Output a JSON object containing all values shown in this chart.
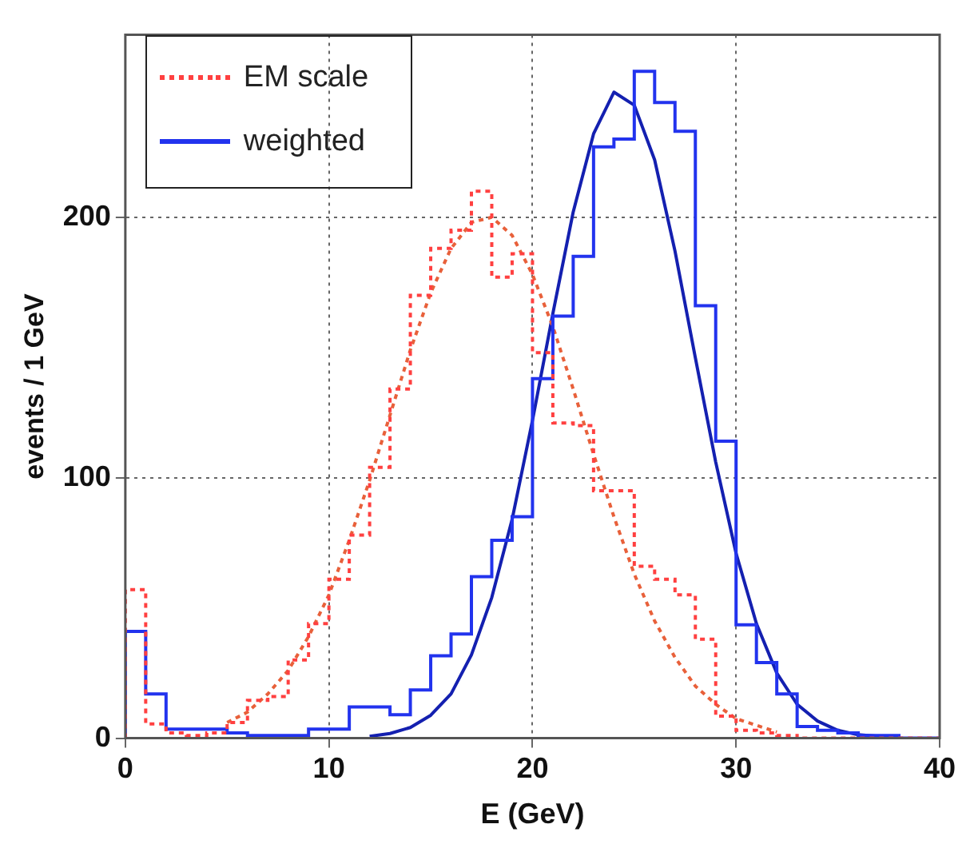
{
  "chart_data": {
    "type": "histogram",
    "xlabel": "E (GeV)",
    "ylabel": "events / 1 GeV",
    "bins": [
      0,
      1,
      2,
      3,
      4,
      5,
      6,
      7,
      8,
      9,
      10,
      11,
      12,
      13,
      14,
      15,
      16,
      17,
      18,
      19,
      20,
      21,
      22,
      23,
      24,
      25,
      26,
      27,
      28,
      29,
      30,
      31,
      32,
      33,
      34,
      35,
      36,
      37,
      38,
      39,
      40
    ],
    "xlim": [
      0,
      40
    ],
    "xticks": [
      0,
      10,
      20,
      30,
      40
    ],
    "ylim": [
      0,
      270
    ],
    "yticks": [
      0,
      100,
      200
    ],
    "grid": true,
    "legend": "top left",
    "marker": "none",
    "series": [
      {
        "name": "EM scale",
        "color": "#ff4040",
        "line_style": "dotted",
        "values": [
          57,
          5.5,
          2,
          1,
          2,
          6,
          14.5,
          16,
          30,
          44,
          61,
          78,
          104,
          134,
          170,
          188,
          195,
          210,
          177,
          186,
          148,
          121,
          120,
          95,
          95,
          66,
          61,
          55,
          38,
          8.5,
          3,
          2,
          1,
          0,
          0,
          0,
          0,
          0,
          0,
          0
        ]
      },
      {
        "name": "weighted",
        "color": "#2233ee",
        "line_style": "solid",
        "values": [
          41,
          17,
          3.5,
          3.5,
          3.5,
          2,
          1,
          1,
          1,
          3.5,
          3.5,
          12,
          12,
          9,
          18.5,
          31.6,
          40,
          62,
          76,
          85,
          138,
          162,
          185,
          227,
          230,
          256,
          244,
          233,
          166,
          114,
          43.5,
          29,
          17,
          4.5,
          3,
          2,
          1,
          1,
          0,
          0
        ]
      },
      {
        "type": "line",
        "color": "#e8603a",
        "line_style": "dotted",
        "x": [
          5,
          6,
          7,
          8,
          9,
          10,
          11,
          12,
          13,
          14,
          15,
          16,
          17,
          18,
          19,
          20,
          21,
          22,
          23,
          24,
          25,
          26,
          27,
          28,
          29,
          30,
          32
        ],
        "values": [
          6,
          10,
          17,
          26,
          39,
          55,
          76,
          99,
          124,
          149,
          171,
          188,
          198,
          200,
          193,
          178,
          158,
          134,
          109,
          85,
          63,
          45,
          31,
          20,
          13,
          7.5,
          2.4
        ]
      },
      {
        "type": "line",
        "color": "#1420b0",
        "line_style": "solid",
        "x": [
          12,
          13,
          14,
          15,
          16,
          17,
          18,
          19,
          20,
          21,
          22,
          23,
          24,
          25,
          26,
          27,
          28,
          29,
          30,
          31,
          32,
          33,
          34,
          35,
          36,
          38
        ],
        "values": [
          0.7,
          1.8,
          4.1,
          8.8,
          17,
          32,
          54,
          84,
          122,
          163,
          202,
          232,
          248,
          243,
          222,
          187,
          146,
          106,
          71,
          44,
          25,
          13,
          6.6,
          3,
          1.3,
          0.1
        ]
      }
    ]
  }
}
